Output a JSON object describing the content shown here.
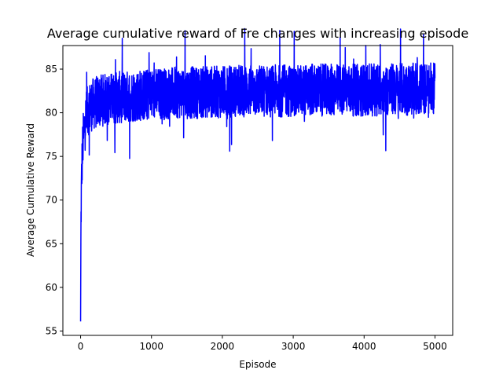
{
  "chart_data": {
    "type": "line",
    "title": "Average cumulative reward of Fre changes with increasing episode",
    "xlabel": "Episode",
    "ylabel": "Average Cumulative Reward",
    "xlim": [
      -250,
      5250
    ],
    "ylim": [
      54.5,
      87.7
    ],
    "xticks": [
      "0",
      "1000",
      "2000",
      "3000",
      "4000",
      "5000"
    ],
    "yticks": [
      "55",
      "60",
      "65",
      "70",
      "75",
      "80",
      "85"
    ],
    "grid": false,
    "legend": "none",
    "color": "#0000ff",
    "series": [
      {
        "x": [
          0,
          5,
          10,
          15,
          20,
          25,
          30,
          40,
          50,
          60,
          70,
          80,
          90,
          100,
          120,
          140,
          160,
          180,
          200,
          250,
          300,
          350,
          400,
          500,
          600,
          700,
          800,
          900,
          1000,
          1200,
          1400,
          1600,
          1800,
          2000,
          2200,
          2400,
          2600,
          2800,
          3000,
          3200,
          3400,
          3600,
          3800,
          4000,
          4200,
          4400,
          4500,
          4600,
          4800,
          5000
        ],
        "y": [
          56.1,
          67.2,
          70.5,
          72.8,
          74.2,
          75.3,
          76.2,
          77.3,
          78.1,
          78.7,
          79.2,
          79.6,
          79.9,
          80.2,
          80.5,
          80.7,
          80.9,
          81.0,
          81.1,
          81.3,
          81.4,
          81.5,
          81.6,
          81.7,
          81.8,
          81.9,
          82.0,
          82.0,
          82.1,
          82.2,
          82.3,
          82.3,
          82.4,
          82.4,
          82.5,
          82.5,
          82.5,
          82.5,
          82.5,
          82.6,
          82.6,
          82.6,
          82.6,
          82.6,
          82.6,
          82.7,
          82.7,
          82.7,
          82.7,
          82.7
        ],
        "band": [
          0,
          2,
          3,
          3,
          3,
          3,
          3,
          3,
          3,
          3,
          3,
          3,
          3,
          3,
          3,
          3,
          3,
          3,
          3,
          3,
          3,
          3,
          3,
          3,
          3,
          3,
          3,
          3,
          3,
          3,
          3,
          3,
          3,
          3,
          3,
          3,
          3,
          3,
          3,
          3,
          3,
          3,
          3,
          3,
          3,
          3,
          3,
          3,
          3,
          3
        ]
      }
    ]
  }
}
